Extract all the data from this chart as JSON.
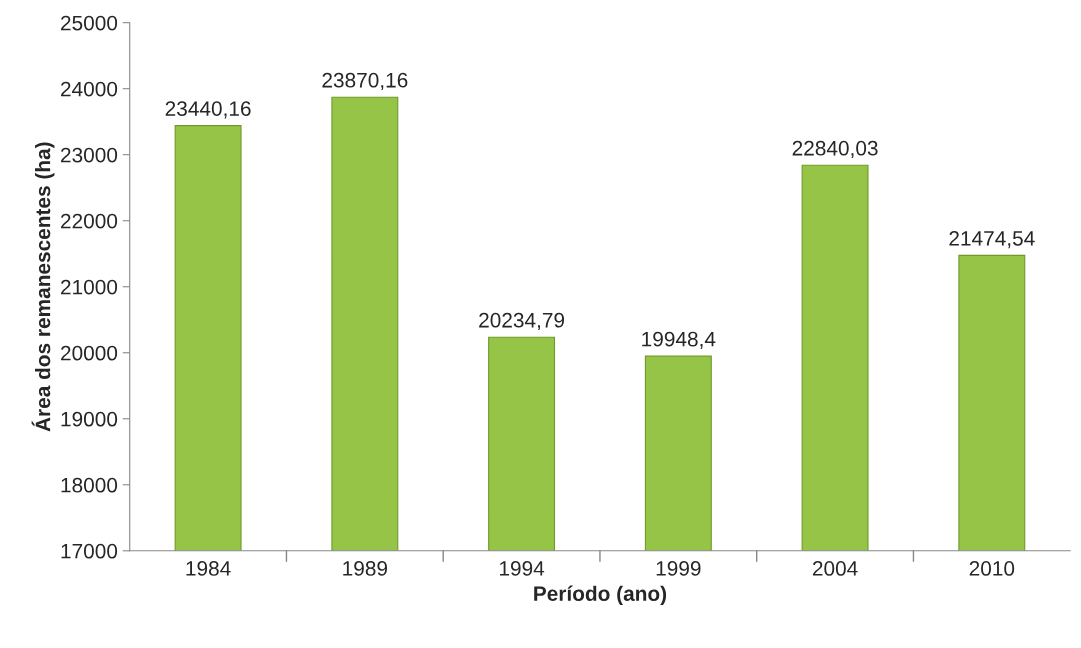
{
  "chart_data": {
    "type": "bar",
    "xlabel": "Período (ano)",
    "ylabel": "Área dos remanescentes (ha)",
    "categories": [
      "1984",
      "1989",
      "1994",
      "1999",
      "2004",
      "2010"
    ],
    "values": [
      23440.16,
      23870.16,
      20234.79,
      19948.4,
      22840.03,
      21474.54
    ],
    "value_labels": [
      "23440,16",
      "23870,16",
      "20234,79",
      "19948,4",
      "22840,03",
      "21474,54"
    ],
    "color": "#95c447",
    "ylim": [
      17000,
      25000
    ],
    "yticks": [
      17000,
      18000,
      19000,
      20000,
      21000,
      22000,
      23000,
      24000,
      25000
    ],
    "grid": false,
    "legend": false
  }
}
